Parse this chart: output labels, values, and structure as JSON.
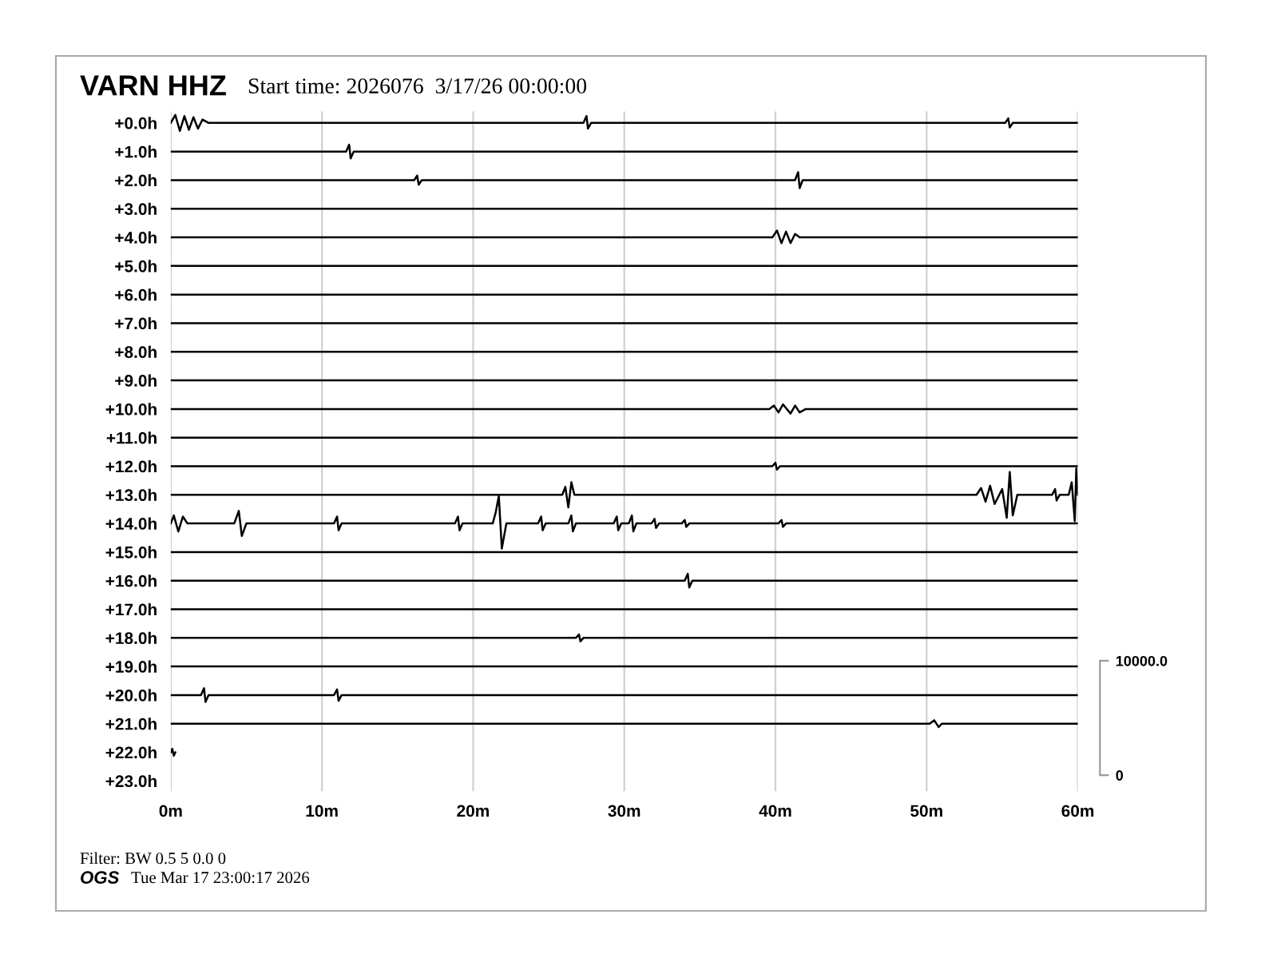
{
  "chart_data": {
    "type": "line",
    "title": "VARN HHZ",
    "subtitle": "Start time: 2026076  3/17/26 00:00:00",
    "annotations": [
      "Filter: BW 0.5 5 0.0 0",
      "OGS",
      "Tue Mar 17 23:00:17 2026"
    ],
    "xlim": [
      0,
      60
    ],
    "xticks": [
      {
        "value": 0,
        "label": "0m"
      },
      {
        "value": 10,
        "label": "10m"
      },
      {
        "value": 20,
        "label": "20m"
      },
      {
        "value": 30,
        "label": "30m"
      },
      {
        "value": 40,
        "label": "40m"
      },
      {
        "value": 50,
        "label": "50m"
      },
      {
        "value": 60,
        "label": "60m"
      }
    ],
    "ylim": [
      23.36,
      -0.4
    ],
    "yticks": [
      {
        "value": 0,
        "label": "+0.0h"
      },
      {
        "value": 1,
        "label": "+1.0h"
      },
      {
        "value": 2,
        "label": "+2.0h"
      },
      {
        "value": 3,
        "label": "+3.0h"
      },
      {
        "value": 4,
        "label": "+4.0h"
      },
      {
        "value": 5,
        "label": "+5.0h"
      },
      {
        "value": 6,
        "label": "+6.0h"
      },
      {
        "value": 7,
        "label": "+7.0h"
      },
      {
        "value": 8,
        "label": "+8.0h"
      },
      {
        "value": 9,
        "label": "+9.0h"
      },
      {
        "value": 10,
        "label": "+10.0h"
      },
      {
        "value": 11,
        "label": "+11.0h"
      },
      {
        "value": 12,
        "label": "+12.0h"
      },
      {
        "value": 13,
        "label": "+13.0h"
      },
      {
        "value": 14,
        "label": "+14.0h"
      },
      {
        "value": 15,
        "label": "+15.0h"
      },
      {
        "value": 16,
        "label": "+16.0h"
      },
      {
        "value": 17,
        "label": "+17.0h"
      },
      {
        "value": 18,
        "label": "+18.0h"
      },
      {
        "value": 19,
        "label": "+19.0h"
      },
      {
        "value": 20,
        "label": "+20.0h"
      },
      {
        "value": 21,
        "label": "+21.0h"
      },
      {
        "value": 22,
        "label": "+22.0h"
      },
      {
        "value": 23,
        "label": "+23.0h"
      }
    ],
    "y2lim": [
      -1400,
      58000
    ],
    "y2ticks": [
      0,
      {
        "value": 10000,
        "label": "10000.0"
      }
    ],
    "grid": "x",
    "legend": false,
    "marker": "none",
    "line_style": "solid",
    "series": [
      {
        "axis": "y2",
        "color": "#000000",
        "x": [
          0,
          0.3,
          0.6,
          0.9,
          1.2,
          1.5,
          1.8,
          2.1,
          2.5,
          27.3,
          27.5,
          27.6,
          27.8,
          55.2,
          55.4,
          55.5,
          55.7,
          60
        ],
        "values": [
          57000,
          57700,
          56300,
          57600,
          56400,
          57500,
          56500,
          57300,
          57000,
          57000,
          57600,
          56500,
          57000,
          57000,
          57400,
          56600,
          57000,
          57000
        ]
      },
      {
        "axis": "y2",
        "color": "#000000",
        "x": [
          0,
          11.6,
          11.8,
          11.9,
          12.1,
          60
        ],
        "values": [
          54500,
          54500,
          55100,
          53900,
          54500,
          54500
        ]
      },
      {
        "axis": "y2",
        "color": "#000000",
        "x": [
          0,
          16.1,
          16.3,
          16.4,
          16.6,
          41.3,
          41.5,
          41.6,
          41.8,
          60
        ],
        "values": [
          52000,
          52000,
          52400,
          51600,
          52000,
          52000,
          52700,
          51300,
          52000,
          52000
        ]
      },
      {
        "axis": "y2",
        "color": "#000000",
        "x": [
          0,
          60
        ],
        "values": [
          49500,
          49500
        ]
      },
      {
        "axis": "y2",
        "color": "#000000",
        "x": [
          0,
          39.8,
          40.1,
          40.4,
          40.7,
          41.0,
          41.3,
          41.6,
          60
        ],
        "values": [
          47000,
          47000,
          47600,
          46500,
          47500,
          46500,
          47300,
          47000,
          47000
        ]
      },
      {
        "axis": "y2",
        "color": "#000000",
        "x": [
          0,
          60
        ],
        "values": [
          44500,
          44500
        ]
      },
      {
        "axis": "y2",
        "color": "#000000",
        "x": [
          0,
          60
        ],
        "values": [
          42000,
          42000
        ]
      },
      {
        "axis": "y2",
        "color": "#000000",
        "x": [
          0,
          60
        ],
        "values": [
          39500,
          39500
        ]
      },
      {
        "axis": "y2",
        "color": "#000000",
        "x": [
          0,
          60
        ],
        "values": [
          37000,
          37000
        ]
      },
      {
        "axis": "y2",
        "color": "#000000",
        "x": [
          0,
          60
        ],
        "values": [
          34500,
          34500
        ]
      },
      {
        "axis": "y2",
        "color": "#000000",
        "x": [
          0,
          39.6,
          39.9,
          40.2,
          40.5,
          41.0,
          41.3,
          41.6,
          42.0,
          60
        ],
        "values": [
          32000,
          32000,
          32300,
          31700,
          32400,
          31600,
          32300,
          31700,
          32000,
          32000
        ]
      },
      {
        "axis": "y2",
        "color": "#000000",
        "x": [
          0,
          60
        ],
        "values": [
          29500,
          29500
        ]
      },
      {
        "axis": "y2",
        "color": "#000000",
        "x": [
          0,
          39.8,
          40.0,
          40.1,
          40.3,
          60
        ],
        "values": [
          27000,
          27000,
          27300,
          26700,
          27000,
          27000
        ]
      },
      {
        "axis": "y2",
        "color": "#000000",
        "x": [
          0,
          25.9,
          26.1,
          26.3,
          26.5,
          26.7,
          53.3,
          53.6,
          53.9,
          54.2,
          54.5,
          55.0,
          55.3,
          55.5,
          55.7,
          56.0,
          58.3,
          58.5,
          58.6,
          58.8,
          59.4,
          59.6,
          59.8,
          59.9,
          60
        ],
        "values": [
          24500,
          24500,
          25200,
          23400,
          25600,
          24500,
          24500,
          25100,
          23900,
          25300,
          23700,
          25000,
          22500,
          26500,
          22700,
          24500,
          24500,
          25000,
          24000,
          24500,
          24500,
          25600,
          22200,
          26800,
          24500
        ]
      },
      {
        "axis": "y2",
        "color": "#000000",
        "x": [
          0,
          0.2,
          0.5,
          0.8,
          1.1,
          4.2,
          4.5,
          4.7,
          5.0,
          10.8,
          11.0,
          11.1,
          11.3,
          18.8,
          19.0,
          19.1,
          19.3,
          21.3,
          21.5,
          21.7,
          21.9,
          22.2,
          24.3,
          24.5,
          24.6,
          24.8,
          26.3,
          26.5,
          26.6,
          26.8,
          29.3,
          29.5,
          29.6,
          29.8,
          30.3,
          30.5,
          30.6,
          30.8,
          31.8,
          32.0,
          32.1,
          32.3,
          33.8,
          34.0,
          34.1,
          34.3,
          40.2,
          40.4,
          40.5,
          40.7,
          60
        ],
        "values": [
          22000,
          22700,
          21300,
          22600,
          22000,
          22000,
          23100,
          20900,
          22000,
          22000,
          22600,
          21400,
          22000,
          22000,
          22600,
          21400,
          22000,
          22000,
          23000,
          24400,
          19800,
          22000,
          22000,
          22600,
          21400,
          22000,
          22000,
          22700,
          21300,
          22000,
          22000,
          22600,
          21400,
          22000,
          22000,
          22700,
          21300,
          22000,
          22000,
          22400,
          21600,
          22000,
          22000,
          22300,
          21700,
          22000,
          22000,
          22300,
          21700,
          22000,
          22000
        ]
      },
      {
        "axis": "y2",
        "color": "#000000",
        "x": [
          0,
          60
        ],
        "values": [
          19500,
          19500
        ]
      },
      {
        "axis": "y2",
        "color": "#000000",
        "x": [
          0,
          34.0,
          34.2,
          34.3,
          34.5,
          60
        ],
        "values": [
          17000,
          17000,
          17600,
          16400,
          17000,
          17000
        ]
      },
      {
        "axis": "y2",
        "color": "#000000",
        "x": [
          0,
          60
        ],
        "values": [
          14500,
          14500
        ]
      },
      {
        "axis": "y2",
        "color": "#000000",
        "x": [
          0,
          26.8,
          27.0,
          27.1,
          27.3,
          60
        ],
        "values": [
          12000,
          12000,
          12300,
          11700,
          12000,
          12000
        ]
      },
      {
        "axis": "y2",
        "color": "#000000",
        "x": [
          0,
          60
        ],
        "values": [
          9500,
          9500
        ]
      },
      {
        "axis": "y2",
        "color": "#000000",
        "x": [
          0,
          2.0,
          2.2,
          2.3,
          2.5,
          10.8,
          11.0,
          11.1,
          11.3,
          60
        ],
        "values": [
          7000,
          7000,
          7600,
          6400,
          7000,
          7000,
          7500,
          6500,
          7000,
          7000
        ]
      },
      {
        "axis": "y2",
        "color": "#000000",
        "x": [
          0,
          50.2,
          50.5,
          50.8,
          51.0,
          60
        ],
        "values": [
          4500,
          4500,
          4800,
          4200,
          4500,
          4500
        ]
      },
      {
        "axis": "y2",
        "color": "#000000",
        "x": [
          0,
          0.1,
          0.2,
          0.3
        ],
        "values": [
          2000,
          2300,
          1700,
          2000
        ]
      }
    ]
  }
}
